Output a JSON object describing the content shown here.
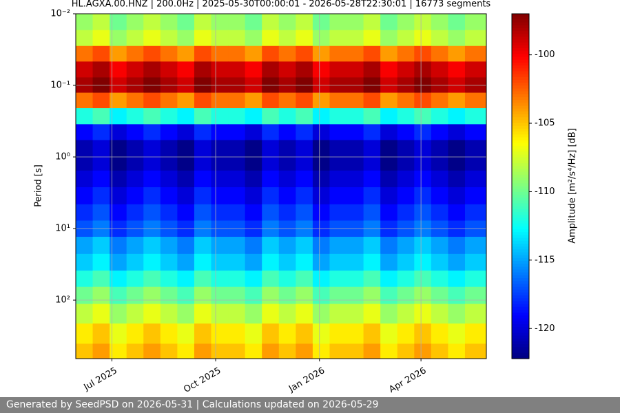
{
  "chart_data": {
    "type": "spectrogram",
    "title": "HL.AGXA.00.HNZ | 200.0Hz | 2025-05-30T00:00:01 - 2026-05-28T22:30:01 | 16773 segments",
    "ylabel": "Period [s]",
    "colorbar_label": "Amplitude [m²/s⁴/Hz] [dB]",
    "colormap": "jet",
    "ylog": true,
    "y_inverted": true,
    "grid": true,
    "xlim": [
      "2025-05-30T00:00:01",
      "2026-05-28T22:30:01"
    ],
    "xticks": [
      {
        "value": "2025-07-01",
        "label": "Jul 2025"
      },
      {
        "value": "2025-10-01",
        "label": "Oct 2025"
      },
      {
        "value": "2026-01-01",
        "label": "Jan 2026"
      },
      {
        "value": "2026-04-01",
        "label": "Apr 2026"
      }
    ],
    "ylim": [
      0.01,
      656
    ],
    "yticks": [
      {
        "value": 0.01,
        "label": "10⁻²"
      },
      {
        "value": 0.1,
        "label": "10⁻¹"
      },
      {
        "value": 1,
        "label": "10⁰"
      },
      {
        "value": 10,
        "label": "10¹"
      },
      {
        "value": 100,
        "label": "10²"
      }
    ],
    "zlim": [
      -122.2,
      -97.0
    ],
    "zticks": [
      -100,
      -105,
      -110,
      -115,
      -120
    ],
    "x": [
      "2025-05-30",
      "2025-06-14",
      "2025-06-29",
      "2025-07-14",
      "2025-07-29",
      "2025-08-13",
      "2025-08-28",
      "2025-09-12",
      "2025-09-27",
      "2025-10-12",
      "2025-10-27",
      "2025-11-11",
      "2025-11-26",
      "2025-12-11",
      "2025-12-26",
      "2026-01-10",
      "2026-01-25",
      "2026-02-09",
      "2026-02-24",
      "2026-03-11",
      "2026-03-26",
      "2026-04-10",
      "2026-04-25",
      "2026-05-10"
    ],
    "y": [
      0.013,
      0.022,
      0.036,
      0.06,
      0.1,
      0.16,
      0.27,
      0.45,
      0.75,
      1.2,
      2,
      3.5,
      6,
      10,
      17,
      30,
      50,
      85,
      150,
      300,
      550
    ],
    "values": [
      [
        -109,
        -108,
        -110,
        -109,
        -108,
        -109,
        -110,
        -108,
        -109,
        -109,
        -110,
        -108,
        -109,
        -108,
        -110,
        -109,
        -109,
        -108,
        -110,
        -109,
        -108,
        -109,
        -110,
        -109
      ],
      [
        -108,
        -107,
        -109,
        -108,
        -107,
        -108,
        -109,
        -107,
        -108,
        -108,
        -109,
        -107,
        -108,
        -107,
        -109,
        -108,
        -108,
        -107,
        -109,
        -108,
        -107,
        -108,
        -109,
        -108
      ],
      [
        -103,
        -102,
        -104,
        -103,
        -102,
        -103,
        -104,
        -102,
        -103,
        -103,
        -104,
        -102,
        -103,
        -102,
        -104,
        -103,
        -103,
        -102,
        -104,
        -103,
        -102,
        -103,
        -104,
        -103
      ],
      [
        -99,
        -98,
        -100,
        -99,
        -98,
        -99,
        -100,
        -98,
        -99,
        -99,
        -100,
        -98,
        -99,
        -98,
        -100,
        -99,
        -99,
        -98,
        -100,
        -99,
        -98,
        -99,
        -100,
        -99
      ],
      [
        -98,
        -97,
        -99,
        -98,
        -97,
        -98,
        -99,
        -97,
        -98,
        -98,
        -99,
        -97,
        -98,
        -97,
        -99,
        -98,
        -98,
        -97,
        -99,
        -98,
        -97,
        -98,
        -99,
        -98
      ],
      [
        -103,
        -102,
        -104,
        -103,
        -102,
        -103,
        -104,
        -102,
        -103,
        -103,
        -104,
        -102,
        -103,
        -102,
        -104,
        -103,
        -103,
        -102,
        -104,
        -103,
        -102,
        -103,
        -104,
        -103
      ],
      [
        -112,
        -111,
        -113,
        -112,
        -111,
        -112,
        -113,
        -111,
        -112,
        -112,
        -113,
        -111,
        -112,
        -111,
        -113,
        -112,
        -112,
        -111,
        -113,
        -112,
        -111,
        -112,
        -113,
        -112
      ],
      [
        -119,
        -118,
        -120,
        -119,
        -118,
        -119,
        -120,
        -118,
        -119,
        -119,
        -120,
        -118,
        -119,
        -118,
        -120,
        -119,
        -119,
        -118,
        -120,
        -119,
        -118,
        -119,
        -120,
        -119
      ],
      [
        -121,
        -120,
        -122,
        -121,
        -120,
        -121,
        -122,
        -120,
        -121,
        -121,
        -122,
        -120,
        -121,
        -120,
        -122,
        -121,
        -121,
        -120,
        -122,
        -121,
        -120,
        -121,
        -122,
        -121
      ],
      [
        -121,
        -120,
        -122,
        -121,
        -120,
        -121,
        -122,
        -120,
        -121,
        -121,
        -122,
        -120,
        -121,
        -120,
        -122,
        -121,
        -121,
        -120,
        -122,
        -121,
        -120,
        -121,
        -122,
        -121
      ],
      [
        -120,
        -119,
        -121,
        -120,
        -119,
        -120,
        -121,
        -119,
        -120,
        -120,
        -121,
        -119,
        -120,
        -119,
        -121,
        -120,
        -120,
        -119,
        -121,
        -120,
        -119,
        -120,
        -121,
        -120
      ],
      [
        -119,
        -118,
        -120,
        -119,
        -118,
        -119,
        -120,
        -118,
        -119,
        -119,
        -120,
        -118,
        -119,
        -118,
        -120,
        -119,
        -119,
        -118,
        -120,
        -119,
        -118,
        -119,
        -120,
        -119
      ],
      [
        -118,
        -117,
        -119,
        -118,
        -117,
        -118,
        -119,
        -117,
        -118,
        -118,
        -119,
        -117,
        -118,
        -117,
        -119,
        -118,
        -118,
        -117,
        -119,
        -118,
        -117,
        -118,
        -119,
        -118
      ],
      [
        -117,
        -116,
        -118,
        -117,
        -116,
        -117,
        -118,
        -116,
        -117,
        -117,
        -118,
        -116,
        -117,
        -116,
        -118,
        -117,
        -117,
        -116,
        -118,
        -117,
        -116,
        -117,
        -118,
        -117
      ],
      [
        -115,
        -114,
        -116,
        -115,
        -114,
        -115,
        -116,
        -114,
        -115,
        -115,
        -116,
        -114,
        -115,
        -114,
        -116,
        -115,
        -115,
        -114,
        -116,
        -115,
        -114,
        -115,
        -116,
        -115
      ],
      [
        -114,
        -113,
        -115,
        -114,
        -113,
        -114,
        -115,
        -113,
        -114,
        -114,
        -115,
        -113,
        -114,
        -113,
        -115,
        -114,
        -114,
        -113,
        -115,
        -114,
        -113,
        -114,
        -115,
        -114
      ],
      [
        -112,
        -111,
        -113,
        -112,
        -111,
        -112,
        -113,
        -111,
        -112,
        -112,
        -113,
        -111,
        -112,
        -111,
        -113,
        -112,
        -112,
        -111,
        -113,
        -112,
        -111,
        -112,
        -113,
        -112
      ],
      [
        -110,
        -109,
        -111,
        -110,
        -109,
        -110,
        -111,
        -109,
        -110,
        -110,
        -111,
        -109,
        -110,
        -109,
        -111,
        -110,
        -110,
        -109,
        -111,
        -110,
        -109,
        -110,
        -111,
        -110
      ],
      [
        -108,
        -107,
        -109,
        -108,
        -107,
        -108,
        -109,
        -107,
        -108,
        -108,
        -109,
        -107,
        -108,
        -107,
        -109,
        -108,
        -108,
        -107,
        -109,
        -108,
        -107,
        -108,
        -109,
        -108
      ],
      [
        -106,
        -105,
        -107,
        -106,
        -105,
        -106,
        -107,
        -105,
        -106,
        -106,
        -107,
        -105,
        -106,
        -105,
        -107,
        -106,
        -106,
        -105,
        -107,
        -106,
        -105,
        -106,
        -107,
        -106
      ],
      [
        -105,
        -104,
        -106,
        -105,
        -104,
        -105,
        -106,
        -104,
        -105,
        -105,
        -106,
        -104,
        -105,
        -104,
        -106,
        -105,
        -105,
        -104,
        -106,
        -105,
        -104,
        -105,
        -106,
        -105
      ]
    ]
  },
  "footer": "Generated by SeedPSD on 2026-05-31 | Calculations updated on 2026-05-29"
}
